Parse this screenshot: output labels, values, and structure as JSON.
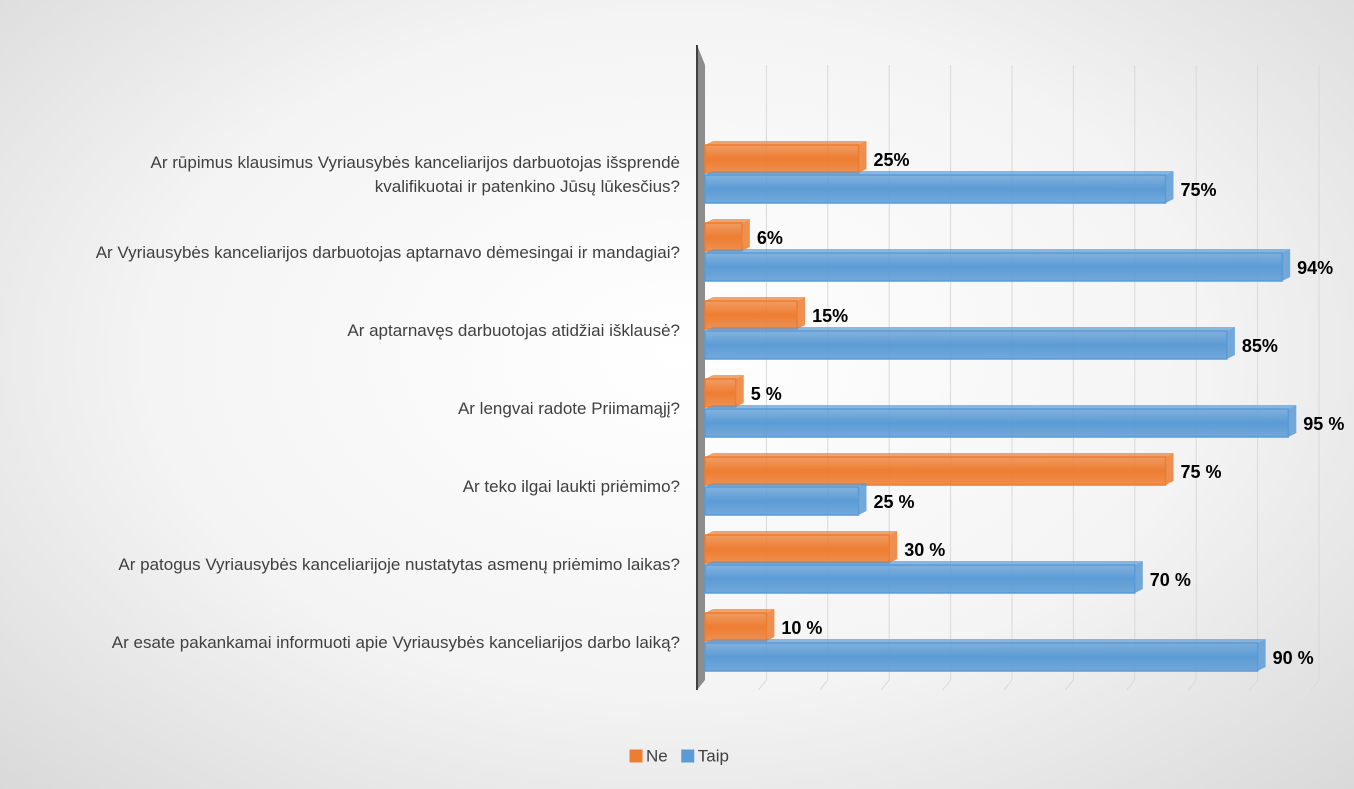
{
  "chart_data": {
    "type": "bar",
    "orientation": "horizontal",
    "categories": [
      "Ar rūpimus klausimus Vyriausybės kanceliarijos  darbuotojas išsprendė kvalifikuotai ir patenkino Jūsų lūkesčius?",
      "Ar Vyriausybės kanceliarijos  darbuotojas aptarnavo dėmesingai ir mandagiai?",
      "Ar aptarnavęs darbuotojas atidžiai išklausė?",
      "Ar lengvai radote Priimamąjį?",
      "Ar teko ilgai laukti priėmimo?",
      "Ar patogus Vyriausybės kanceliarijoje nustatytas asmenų priėmimo laikas?",
      "Ar esate pakankamai informuoti apie Vyriausybės kanceliarijos darbo laiką?"
    ],
    "series": [
      {
        "name": "Ne",
        "color": "#ed7d31",
        "values": [
          25,
          6,
          15,
          5,
          75,
          30,
          10
        ],
        "value_labels": [
          "25%",
          "6%",
          "15%",
          "5 %",
          "75 %",
          "30 %",
          "10 %"
        ]
      },
      {
        "name": "Taip",
        "color": "#5b9bd5",
        "values": [
          75,
          94,
          85,
          95,
          25,
          70,
          90
        ],
        "value_labels": [
          "75%",
          "94%",
          "85%",
          "95 %",
          "25 %",
          "70 %",
          "90 %"
        ]
      }
    ],
    "xlim": [
      0,
      100
    ],
    "xticks": [
      0,
      10,
      20,
      30,
      40,
      50,
      60,
      70,
      80,
      90,
      100
    ],
    "grid": true,
    "legend": "bottom"
  }
}
